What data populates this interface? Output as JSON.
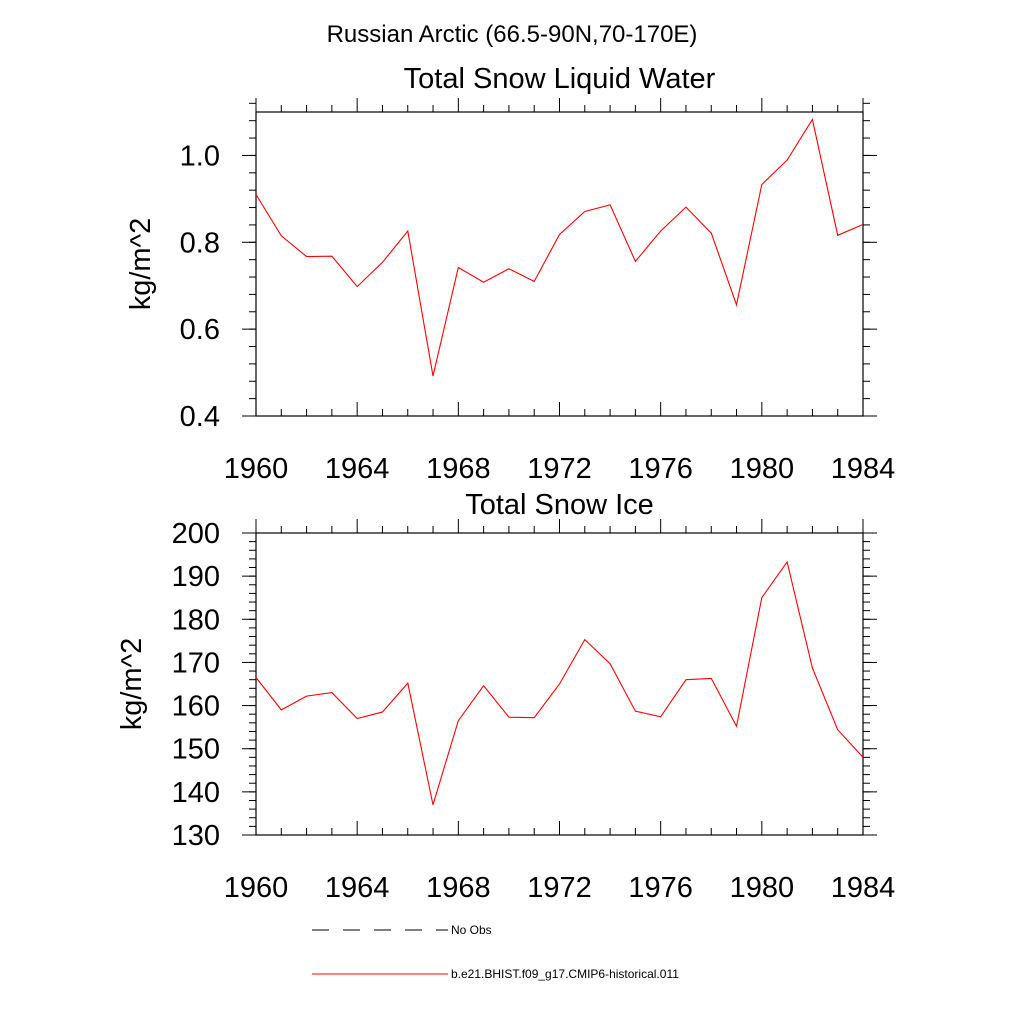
{
  "figure_title": "Russian Arctic (66.5-90N,70-170E)",
  "legend": {
    "entries": [
      {
        "label": "No Obs",
        "color": "#000000",
        "style": "dashed"
      },
      {
        "label": "b.e21.BHIST.f09_g17.CMIP6-historical.011",
        "color": "#ff0000",
        "style": "solid"
      }
    ]
  },
  "chart_data": [
    {
      "type": "line",
      "title": "Total Snow Liquid Water",
      "xlabel": "",
      "ylabel": "kg/m^2",
      "xlim": [
        1960,
        1984
      ],
      "ylim": [
        0.4,
        1.1
      ],
      "x_ticks": [
        1960,
        1964,
        1968,
        1972,
        1976,
        1980,
        1984
      ],
      "y_ticks": [
        0.4,
        0.6,
        0.8,
        1.0
      ],
      "y_tick_labels": [
        "0.4",
        "0.6",
        "0.8",
        "1.0"
      ],
      "y_minor_step": 0.04,
      "x": [
        1960,
        1961,
        1962,
        1963,
        1964,
        1965,
        1966,
        1967,
        1968,
        1969,
        1970,
        1971,
        1972,
        1973,
        1974,
        1975,
        1976,
        1977,
        1978,
        1979,
        1980,
        1981,
        1982,
        1983,
        1984
      ],
      "series": [
        {
          "name": "b.e21.BHIST.f09_g17.CMIP6-historical.011",
          "color": "#ff0000",
          "values": [
            0.91,
            0.815,
            0.767,
            0.768,
            0.698,
            0.754,
            0.826,
            0.492,
            0.742,
            0.708,
            0.739,
            0.71,
            0.818,
            0.871,
            0.886,
            0.756,
            0.826,
            0.881,
            0.821,
            0.656,
            0.933,
            0.989,
            1.083,
            0.816,
            0.841
          ]
        }
      ]
    },
    {
      "type": "line",
      "title": "Total Snow Ice",
      "xlabel": "",
      "ylabel": "kg/m^2",
      "xlim": [
        1960,
        1984
      ],
      "ylim": [
        130,
        200
      ],
      "x_ticks": [
        1960,
        1964,
        1968,
        1972,
        1976,
        1980,
        1984
      ],
      "y_ticks": [
        130,
        140,
        150,
        160,
        170,
        180,
        190,
        200
      ],
      "y_tick_labels": [
        "130",
        "140",
        "150",
        "160",
        "170",
        "180",
        "190",
        "200"
      ],
      "y_minor_step": 2,
      "x": [
        1960,
        1961,
        1962,
        1963,
        1964,
        1965,
        1966,
        1967,
        1968,
        1969,
        1970,
        1971,
        1972,
        1973,
        1974,
        1975,
        1976,
        1977,
        1978,
        1979,
        1980,
        1981,
        1982,
        1983,
        1984
      ],
      "series": [
        {
          "name": "b.e21.BHIST.f09_g17.CMIP6-historical.011",
          "color": "#ff0000",
          "values": [
            166.5,
            159.0,
            162.2,
            163.0,
            157.0,
            158.5,
            165.2,
            137.0,
            156.5,
            164.6,
            157.3,
            157.2,
            165.0,
            175.3,
            169.7,
            158.7,
            157.4,
            166.0,
            166.3,
            155.2,
            185.0,
            193.3,
            168.7,
            154.4,
            148.0
          ]
        }
      ]
    }
  ]
}
